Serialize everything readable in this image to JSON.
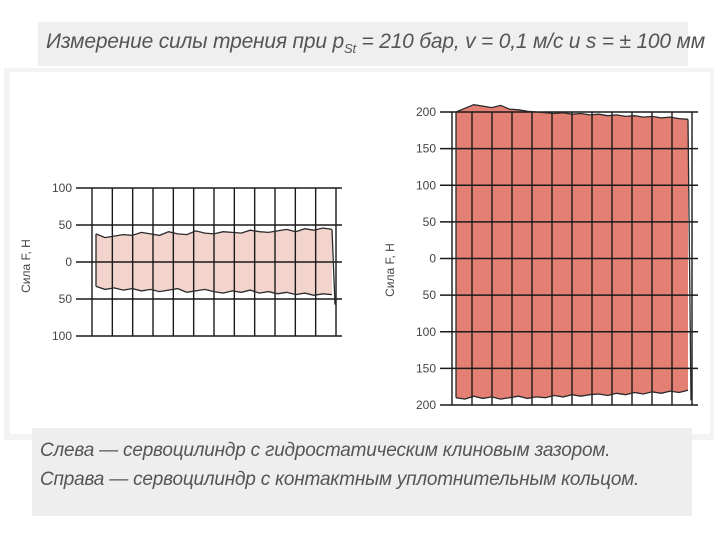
{
  "title": {
    "prefix": "Измерение силы трения при",
    "p": "p",
    "p_sub": "St",
    "suffix": "= 210 бар,  v = 0,1 м/с и s = ± 100 мм"
  },
  "caption": {
    "line1": "Слева — сервоцилиндр с гидростатическим клиновым зазором.",
    "line2": "Справа — сервоцилиндр с контактным уплотнительным кольцом."
  },
  "colors": {
    "left_fill": "#f2d4cc",
    "right_fill": "#e47f73",
    "grid": "#1a1a1a",
    "trace": "#2a2a2a"
  },
  "chart_data": [
    {
      "type": "area",
      "ylabel": "Сила F, Н",
      "ylim": [
        -100,
        100
      ],
      "ytick_labels": [
        "100",
        "50",
        "0",
        "50",
        "100"
      ],
      "ytick_values": [
        100,
        50,
        0,
        -50,
        -100
      ],
      "grid": true,
      "series": [
        {
          "values": [
            38,
            33,
            35,
            37,
            36,
            40,
            38,
            36,
            41,
            38,
            37,
            42,
            39,
            38,
            41,
            40,
            39,
            43,
            41,
            40,
            42,
            44,
            41,
            45,
            43,
            46,
            44
          ]
        },
        {
          "values": [
            -33,
            -37,
            -35,
            -38,
            -36,
            -39,
            -37,
            -40,
            -38,
            -36,
            -41,
            -39,
            -37,
            -40,
            -42,
            -39,
            -41,
            -38,
            -42,
            -40,
            -43,
            -41,
            -44,
            -42,
            -45,
            -43,
            -44
          ]
        }
      ]
    },
    {
      "type": "area",
      "ylabel": "Сила F, Н",
      "ylim": [
        -200,
        200
      ],
      "ytick_labels": [
        "200",
        "150",
        "100",
        "50",
        "0",
        "50",
        "100",
        "150",
        "200"
      ],
      "ytick_values": [
        200,
        150,
        100,
        50,
        0,
        -50,
        -100,
        -150,
        -200
      ],
      "grid": true,
      "series": [
        {
          "values": [
            200,
            205,
            210,
            208,
            206,
            209,
            204,
            203,
            201,
            200,
            199,
            198,
            199,
            197,
            198,
            196,
            197,
            195,
            196,
            194,
            195,
            193,
            194,
            192,
            193,
            191,
            190
          ]
        },
        {
          "values": [
            -190,
            -192,
            -188,
            -191,
            -189,
            -192,
            -190,
            -188,
            -191,
            -189,
            -190,
            -187,
            -189,
            -186,
            -188,
            -186,
            -185,
            -187,
            -184,
            -186,
            -183,
            -185,
            -182,
            -184,
            -181,
            -183,
            -180
          ]
        }
      ]
    }
  ]
}
